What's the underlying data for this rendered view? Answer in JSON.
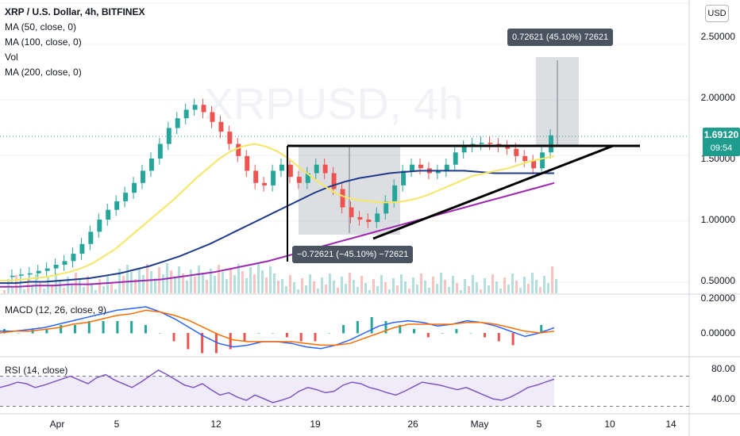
{
  "header": {
    "symbol": "XRP / U.S. Dollar, 4h, BITFINEX",
    "indicators": [
      "MA (50, close, 0)",
      "MA (100, close, 0)",
      "Vol",
      "MA (200, close, 0)"
    ],
    "currency_badge": "USD",
    "watermark": "XRPUSD, 4h"
  },
  "price_tag": {
    "price": "1.69120",
    "countdown": "09:54",
    "color": "#1e9c8d"
  },
  "measures": {
    "up": "0.72621 (45.10%) 72621",
    "down": "−0.72621 (−45.10%) −72621"
  },
  "panes": {
    "macd_label": "MACD (12, 26, close, 9)",
    "rsi_label": "RSI (14, close)"
  },
  "chart_data": {
    "type": "candlestick",
    "x_ticks": [
      "Apr",
      "5",
      "12",
      "19",
      "26",
      "May",
      "5",
      "10",
      "14"
    ],
    "price_ticks": [
      "2.50000",
      "2.00000",
      "1.50000",
      "1.00000",
      "0.50000"
    ],
    "macd_ticks": [
      "0.20000",
      "0.00000"
    ],
    "rsi_ticks": [
      "80.00",
      "40.00"
    ],
    "price_series": [
      0.53,
      0.54,
      0.55,
      0.56,
      0.58,
      0.6,
      0.63,
      0.66,
      0.72,
      0.8,
      0.9,
      1.0,
      1.08,
      1.15,
      1.22,
      1.3,
      1.4,
      1.5,
      1.62,
      1.75,
      1.83,
      1.9,
      1.94,
      1.88,
      1.8,
      1.72,
      1.62,
      1.52,
      1.4,
      1.3,
      1.28,
      1.4,
      1.45,
      1.35,
      1.3,
      1.38,
      1.45,
      1.38,
      1.25,
      1.1,
      1.02,
      1.0,
      0.98,
      1.05,
      1.15,
      1.28,
      1.4,
      1.45,
      1.42,
      1.38,
      1.4,
      1.45,
      1.55,
      1.6,
      1.62,
      1.63,
      1.62,
      1.6,
      1.58,
      1.52,
      1.48,
      1.42,
      1.55,
      1.69
    ],
    "ma50": [
      0.5,
      0.5,
      0.51,
      0.52,
      0.53,
      0.55,
      0.57,
      0.6,
      0.64,
      0.7,
      0.76,
      0.84,
      0.92,
      1.0,
      1.08,
      1.16,
      1.25,
      1.34,
      1.42,
      1.5,
      1.56,
      1.6,
      1.62,
      1.6,
      1.56,
      1.5,
      1.42,
      1.35,
      1.28,
      1.22,
      1.18,
      1.16,
      1.15,
      1.14,
      1.14,
      1.15,
      1.17,
      1.2,
      1.24,
      1.28,
      1.32,
      1.36,
      1.38,
      1.4,
      1.42,
      1.45,
      1.48,
      1.5,
      1.52
    ],
    "ma100": [
      0.48,
      0.48,
      0.49,
      0.49,
      0.5,
      0.51,
      0.52,
      0.54,
      0.56,
      0.59,
      0.62,
      0.66,
      0.7,
      0.75,
      0.8,
      0.86,
      0.92,
      0.98,
      1.04,
      1.1,
      1.16,
      1.22,
      1.27,
      1.31,
      1.34,
      1.36,
      1.38,
      1.39,
      1.4,
      1.4,
      1.4,
      1.4,
      1.39,
      1.38,
      1.38,
      1.38,
      1.38,
      1.38
    ],
    "ma200": [
      0.45,
      0.45,
      0.46,
      0.46,
      0.47,
      0.47,
      0.48,
      0.49,
      0.5,
      0.51,
      0.53,
      0.55,
      0.57,
      0.6,
      0.63,
      0.66,
      0.7,
      0.74,
      0.78,
      0.82,
      0.86,
      0.9,
      0.94,
      0.98,
      1.02,
      1.06,
      1.1,
      1.14,
      1.18,
      1.22,
      1.26,
      1.3
    ],
    "macd_line": [
      0.01,
      0.01,
      0.02,
      0.03,
      0.05,
      0.07,
      0.09,
      0.11,
      0.13,
      0.14,
      0.15,
      0.12,
      0.08,
      0.03,
      -0.02,
      -0.06,
      -0.08,
      -0.07,
      -0.05,
      -0.05,
      -0.06,
      -0.08,
      -0.09,
      -0.07,
      -0.04,
      0.0,
      0.04,
      0.06,
      0.07,
      0.06,
      0.04,
      0.05,
      0.07,
      0.06,
      0.04,
      0.01,
      -0.02,
      0.0,
      0.03
    ],
    "signal_line": [
      0.0,
      0.01,
      0.01,
      0.02,
      0.03,
      0.05,
      0.06,
      0.08,
      0.1,
      0.11,
      0.13,
      0.12,
      0.1,
      0.07,
      0.03,
      -0.01,
      -0.04,
      -0.05,
      -0.05,
      -0.05,
      -0.05,
      -0.06,
      -0.07,
      -0.07,
      -0.06,
      -0.03,
      0.0,
      0.03,
      0.05,
      0.05,
      0.05,
      0.05,
      0.06,
      0.06,
      0.05,
      0.03,
      0.01,
      0.0,
      0.01
    ],
    "rsi": [
      55,
      58,
      62,
      60,
      55,
      58,
      62,
      66,
      70,
      65,
      60,
      68,
      72,
      65,
      60,
      55,
      62,
      70,
      78,
      72,
      65,
      58,
      55,
      60,
      52,
      45,
      48,
      42,
      38,
      45,
      40,
      35,
      38,
      42,
      50,
      55,
      52,
      48,
      50,
      58,
      62,
      60,
      55,
      52,
      48,
      45,
      50,
      56,
      62,
      60,
      58,
      55,
      52,
      55,
      50,
      45,
      40,
      38,
      42,
      48,
      55,
      58,
      62,
      66
    ]
  }
}
